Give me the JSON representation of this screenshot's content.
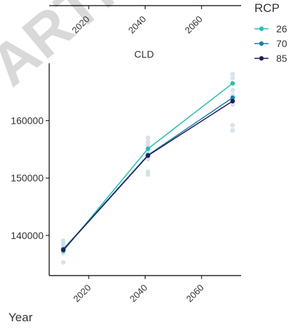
{
  "watermark_text": "ARTIC",
  "chart_data": {
    "type": "line",
    "panels": [
      {
        "title": "",
        "x_ticks": [
          2020,
          2040,
          2060
        ],
        "xlim": [
          2006,
          2074
        ],
        "partial": true
      },
      {
        "title": "CLD",
        "x": [
          2011,
          2041,
          2071
        ],
        "xlim": [
          2006,
          2074
        ],
        "x_ticks": [
          2020,
          2040,
          2060
        ],
        "ylim": [
          133000,
          170000
        ],
        "y_ticks": [
          140000,
          150000,
          160000
        ],
        "series": [
          {
            "name": "26",
            "color": "#2bbcb0",
            "values": [
              137300,
              155100,
              166500
            ]
          },
          {
            "name": "70",
            "color": "#1a7fa8",
            "values": [
              137600,
              154000,
              164000
            ]
          },
          {
            "name": "85",
            "color": "#221c5c",
            "values": [
              137500,
              153900,
              163400
            ]
          }
        ],
        "scatter_points": [
          [
            2011,
            135300
          ],
          [
            2011,
            136900
          ],
          [
            2011,
            137400
          ],
          [
            2011,
            137900
          ],
          [
            2011,
            138300
          ],
          [
            2011,
            138700
          ],
          [
            2011,
            139100
          ],
          [
            2041,
            150600
          ],
          [
            2041,
            151100
          ],
          [
            2041,
            153300
          ],
          [
            2041,
            153800
          ],
          [
            2041,
            154400
          ],
          [
            2041,
            155700
          ],
          [
            2041,
            156300
          ],
          [
            2041,
            157000
          ],
          [
            2071,
            158300
          ],
          [
            2071,
            159200
          ],
          [
            2071,
            162800
          ],
          [
            2071,
            163600
          ],
          [
            2071,
            164400
          ],
          [
            2071,
            165300
          ],
          [
            2071,
            167400
          ],
          [
            2071,
            168100
          ]
        ]
      }
    ],
    "xlabel": "Year",
    "legend": {
      "title": "RCP",
      "position": "right"
    }
  }
}
